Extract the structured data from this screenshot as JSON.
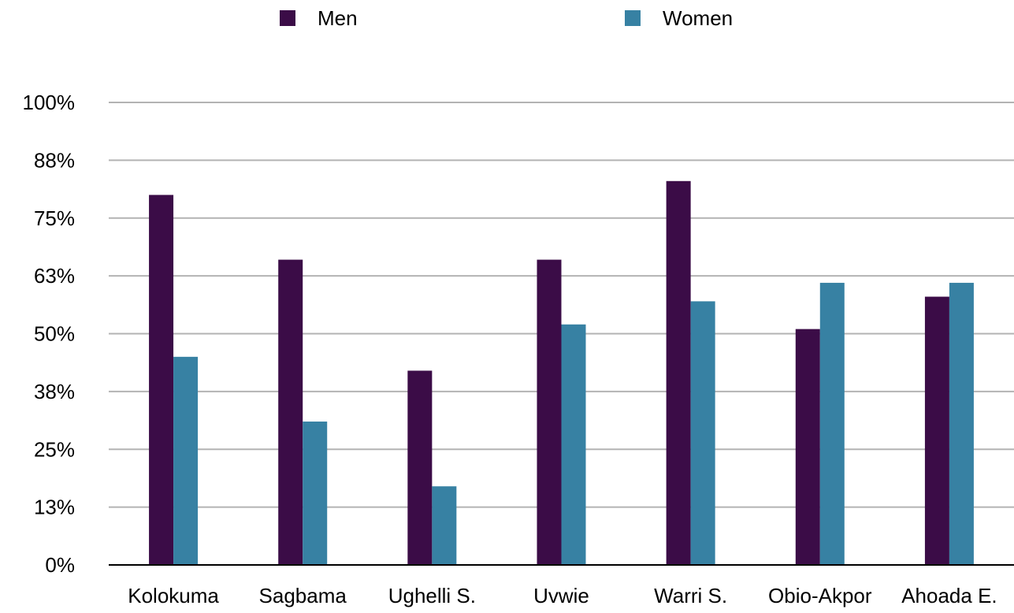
{
  "chart_data": {
    "type": "bar",
    "title": "",
    "xlabel": "",
    "ylabel": "",
    "categories": [
      "Kolokuma",
      "Sagbama",
      "Ughelli S.",
      "Uvwie",
      "Warri S.",
      "Obio-Akpor",
      "Ahoada E."
    ],
    "series": [
      {
        "name": "Men",
        "color": "#3b0c47",
        "values": [
          0.8,
          0.66,
          0.42,
          0.66,
          0.83,
          0.51,
          0.58
        ]
      },
      {
        "name": "Women",
        "color": "#3781a3",
        "values": [
          0.45,
          0.31,
          0.17,
          0.52,
          0.57,
          0.61,
          0.61
        ]
      }
    ],
    "y_ticks": [
      "0%",
      "13%",
      "25%",
      "38%",
      "50%",
      "63%",
      "75%",
      "88%",
      "100%"
    ],
    "ylim": [
      0,
      1
    ],
    "grid": true,
    "legend_position": "top"
  }
}
